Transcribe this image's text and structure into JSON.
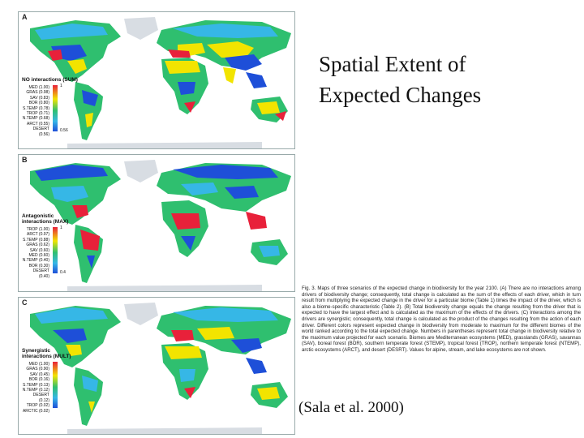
{
  "slide": {
    "title_line1": "Spatial Extent of",
    "title_line2": "Expected Changes",
    "citation": "(Sala et al. 2000)",
    "caption": "Fig. 3. Maps of three scenarios of the expected change in biodiversity for the year 2100. (A) There are no interactions among drivers of biodiversity change; consequently, total change is calculated as the sum of the effects of each driver, which in turn result from multiplying the expected change in the driver for a particular biome (Table 1) times the impact of the driver, which is also a biome-specific characteristic (Table 2). (B) Total biodiversity change equals the change resulting from the driver that is expected to have the largest effect and is calculated as the maximum of the effects of the drivers. (C) Interactions among the drivers are synergistic; consequently, total change is calculated as the product of the changes resulting from the action of each driver. Different colors represent expected change in biodiversity from moderate to maximum for the different biomes of the world ranked according to the total expected change. Numbers in parentheses represent total change in biodiversity relative to the maximum value projected for each scenario. Biomes are Mediterranean ecosystems (MED), grasslands (GRAS), savannas (SAV), boreal forest (BOR), southern temperate forest (STEMP), tropical forest (TROP), northern temperate forest (NTEMP), arctic ecosystems (ARCT), and desert (DESRT). Values for alpine, stream, and lake ecosystems are not shown."
  },
  "panels": [
    {
      "letter": "A",
      "legend_title_1": "NO interactions (SUM)",
      "legend_title_2": "",
      "rows": [
        "MED (1.00)",
        "GRAS (0.98)",
        "SAV (0.83)",
        "BOR (0.80)",
        "S.TEMP (0.78)",
        "TROP (0.71)",
        "N.TEMP (0.68)",
        "ARCT (0.55)",
        "DESERT (0.56)"
      ],
      "bar_max": "1",
      "bar_min": "0.56",
      "colors": {
        "land": "#2fbf6f",
        "red": "#e8213a",
        "yellow": "#f2e400",
        "blue": "#1e4fd8",
        "cyan": "#36b7e6"
      }
    },
    {
      "letter": "B",
      "legend_title_1": "Antagonistic",
      "legend_title_2": "interactions (MAX)",
      "rows": [
        "TROP (1.00)",
        "ARCT (0.97)",
        "S.TEMP (0.88)",
        "GRAS (0.62)",
        "SAV (0.60)",
        "MED (0.60)",
        "N.TEMP (0.40)",
        "BOR (0.30)",
        "DESERT (0.40)"
      ],
      "bar_max": "1",
      "bar_min": "0.4"
    },
    {
      "letter": "C",
      "legend_title_1": "Synergistic",
      "legend_title_2": "interactions (MULT)",
      "rows": [
        "MED (1.00)",
        "GRAS (0.90)",
        "SAV (0.45)",
        "BOR (0.16)",
        "S.TEMP (0.13)",
        "N.TEMP (0.12)",
        "DESERT (0.12)",
        "TROP (0.02)",
        "ARCTIC (0.02)"
      ],
      "bar_max": "",
      "bar_min": ""
    }
  ]
}
